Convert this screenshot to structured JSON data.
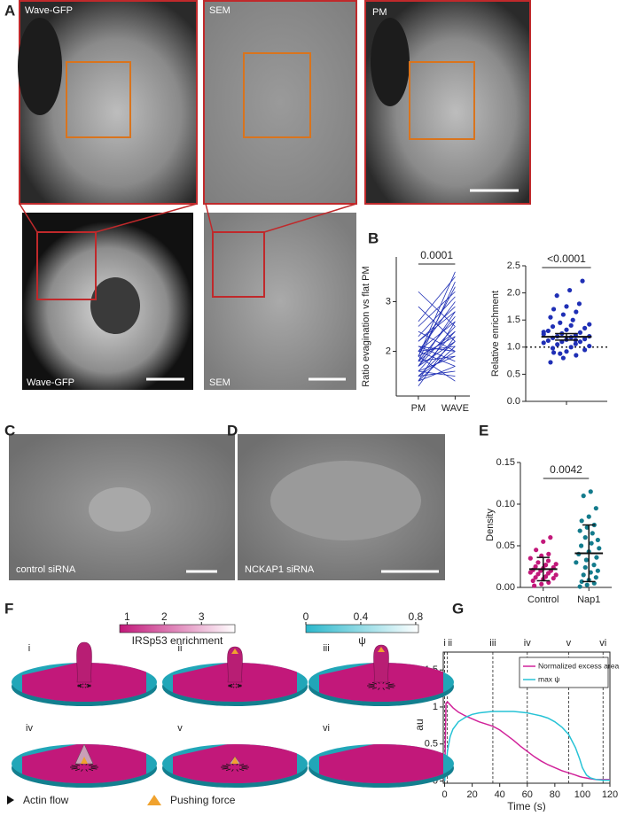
{
  "panel_labels": [
    "A",
    "B",
    "C",
    "D",
    "E",
    "F",
    "G"
  ],
  "images": {
    "wave_gfp_zoom": "Wave-GFP",
    "sem_zoom": "SEM",
    "pm_zoom": "PM",
    "wave_gfp": "Wave-GFP",
    "sem": "SEM",
    "control": "control siRNA",
    "nckap1": "NCKAP1 siRNA"
  },
  "scheme": {
    "colorbars": [
      {
        "label": "IRSp53 enrichment",
        "lim": [
          0.8,
          3.9
        ],
        "ticks": [
          1,
          2,
          3
        ],
        "color": "#c2187a"
      },
      {
        "label": "ψ",
        "lim": [
          0,
          0.82
        ],
        "ticks": [
          0,
          0.4,
          0.8
        ],
        "color": "#2bb8cc"
      }
    ],
    "stages": [
      "i",
      "ii",
      "iii",
      "iv",
      "v",
      "vi"
    ],
    "legend": [
      "Actin flow",
      "Pushing force"
    ]
  },
  "chart_data": [
    {
      "type": "paired",
      "ylabel": "Ratio evagination vs flat PM",
      "categories": [
        "PM",
        "WAVE"
      ],
      "color": "#1f2fb5",
      "pairs": [
        [
          1.6,
          2.4
        ],
        [
          1.9,
          3.6
        ],
        [
          2.1,
          2.0
        ],
        [
          1.4,
          2.6
        ],
        [
          1.8,
          1.9
        ],
        [
          2.3,
          3.1
        ],
        [
          1.5,
          2.2
        ],
        [
          2.0,
          1.7
        ],
        [
          2.6,
          3.5
        ],
        [
          1.7,
          2.8
        ],
        [
          1.9,
          2.3
        ],
        [
          3.2,
          2.5
        ],
        [
          1.5,
          1.6
        ],
        [
          2.2,
          2.9
        ],
        [
          1.8,
          2.7
        ],
        [
          1.4,
          2.1
        ],
        [
          2.0,
          3.0
        ],
        [
          1.6,
          1.5
        ],
        [
          2.4,
          2.0
        ],
        [
          1.9,
          3.3
        ],
        [
          1.7,
          2.5
        ],
        [
          2.1,
          1.8
        ],
        [
          1.3,
          2.3
        ],
        [
          2.9,
          2.2
        ],
        [
          1.8,
          3.4
        ],
        [
          2.0,
          2.6
        ],
        [
          1.6,
          1.9
        ],
        [
          1.5,
          2.0
        ],
        [
          2.2,
          2.8
        ],
        [
          1.9,
          1.4
        ],
        [
          1.7,
          2.2
        ],
        [
          2.5,
          3.2
        ],
        [
          1.4,
          1.7
        ],
        [
          1.8,
          2.4
        ],
        [
          2.0,
          2.1
        ]
      ],
      "ylim": [
        1.1,
        3.9
      ],
      "yticks": [
        2,
        3
      ],
      "annotation": "0.0001"
    },
    {
      "type": "dot",
      "ylabel": "Relative enrichment",
      "categories": [
        null
      ],
      "groups": [
        {
          "color": "#1f2fb5",
          "values": [
            0.72,
            0.8,
            0.85,
            0.9,
            0.92,
            0.95,
            0.98,
            1.0,
            1.02,
            1.05,
            1.06,
            1.08,
            1.1,
            1.1,
            1.12,
            1.14,
            1.15,
            1.17,
            1.18,
            1.2,
            1.2,
            1.22,
            1.24,
            1.25,
            1.27,
            1.3,
            1.32,
            1.35,
            1.38,
            1.4,
            1.42,
            1.45,
            1.5,
            1.55,
            1.6,
            1.65,
            1.7,
            1.75,
            1.8,
            1.95,
            2.05,
            2.22,
            0.88,
            1.13,
            1.28
          ],
          "mean": 1.19,
          "error": 0.06
        }
      ],
      "ylim": [
        0,
        2.5
      ],
      "yticks": [
        {
          "value": 0,
          "label": "0.0"
        },
        0.5,
        {
          "value": 1,
          "label": "1.0"
        },
        1.5,
        {
          "value": 2,
          "label": "2.0"
        },
        2.5
      ],
      "reference_line": 1,
      "annotation": "<0.0001"
    },
    {
      "type": "dot",
      "ylabel": "Density",
      "categories": [
        "Control",
        "Nap1"
      ],
      "groups": [
        {
          "color": "#c2187a",
          "values": [
            0.002,
            0.004,
            0.006,
            0.008,
            0.01,
            0.011,
            0.012,
            0.013,
            0.015,
            0.016,
            0.017,
            0.018,
            0.02,
            0.02,
            0.021,
            0.023,
            0.024,
            0.025,
            0.027,
            0.028,
            0.03,
            0.032,
            0.035,
            0.038,
            0.04,
            0.045,
            0.055,
            0.06
          ],
          "mean": 0.022,
          "error": 0.014
        },
        {
          "color": "#137b8c",
          "values": [
            0.001,
            0.003,
            0.005,
            0.007,
            0.009,
            0.012,
            0.015,
            0.018,
            0.02,
            0.024,
            0.027,
            0.03,
            0.033,
            0.036,
            0.04,
            0.043,
            0.047,
            0.05,
            0.053,
            0.057,
            0.06,
            0.065,
            0.068,
            0.072,
            0.075,
            0.08,
            0.085,
            0.095,
            0.11,
            0.115
          ],
          "mean": 0.041,
          "error": 0.034
        }
      ],
      "ylim": [
        0,
        0.15
      ],
      "yticks": [
        {
          "value": 0,
          "label": "0.00"
        },
        0.05,
        {
          "value": 0.1,
          "label": "0.10"
        },
        0.15
      ],
      "annotation": "0.0042"
    },
    {
      "type": "line",
      "xlabel": "Time (s)",
      "ylabel": "au",
      "x": [
        0,
        1,
        2,
        4,
        6,
        10,
        15,
        20,
        25,
        30,
        35,
        40,
        45,
        50,
        55,
        60,
        65,
        70,
        75,
        80,
        85,
        90,
        95,
        98,
        100,
        103,
        106,
        110,
        115,
        120
      ],
      "series": [
        {
          "name": "Normalized excess area",
          "color": "#d1239a",
          "values": [
            0,
            1.05,
            1.07,
            1.03,
            0.99,
            0.93,
            0.88,
            0.84,
            0.8,
            0.77,
            0.74,
            0.69,
            0.62,
            0.55,
            0.47,
            0.4,
            0.33,
            0.27,
            0.22,
            0.18,
            0.14,
            0.11,
            0.08,
            0.06,
            0.05,
            0.04,
            0.03,
            0.02,
            0.02,
            0.02
          ]
        },
        {
          "name": "max ψ",
          "color": "#27c3d6",
          "values": [
            0,
            0.2,
            0.4,
            0.6,
            0.7,
            0.8,
            0.86,
            0.9,
            0.92,
            0.93,
            0.94,
            0.94,
            0.94,
            0.94,
            0.93,
            0.92,
            0.9,
            0.88,
            0.85,
            0.8,
            0.73,
            0.63,
            0.45,
            0.3,
            0.18,
            0.08,
            0.04,
            0.02,
            0.01,
            0.01
          ]
        }
      ],
      "markers": [
        {
          "x": 0,
          "label": "i"
        },
        {
          "x": 2,
          "label": "ii"
        },
        {
          "x": 35,
          "label": "iii"
        },
        {
          "x": 60,
          "label": "iv"
        },
        {
          "x": 90,
          "label": "v"
        },
        {
          "x": 115,
          "label": "vi"
        }
      ],
      "xlim": [
        -1,
        120
      ],
      "ylim": [
        -0.03,
        1.55
      ],
      "xticks": [
        0,
        20,
        40,
        60,
        80,
        100,
        120
      ],
      "yticks": [
        0,
        0.5,
        1,
        1.5
      ],
      "legend": "upper right"
    }
  ]
}
